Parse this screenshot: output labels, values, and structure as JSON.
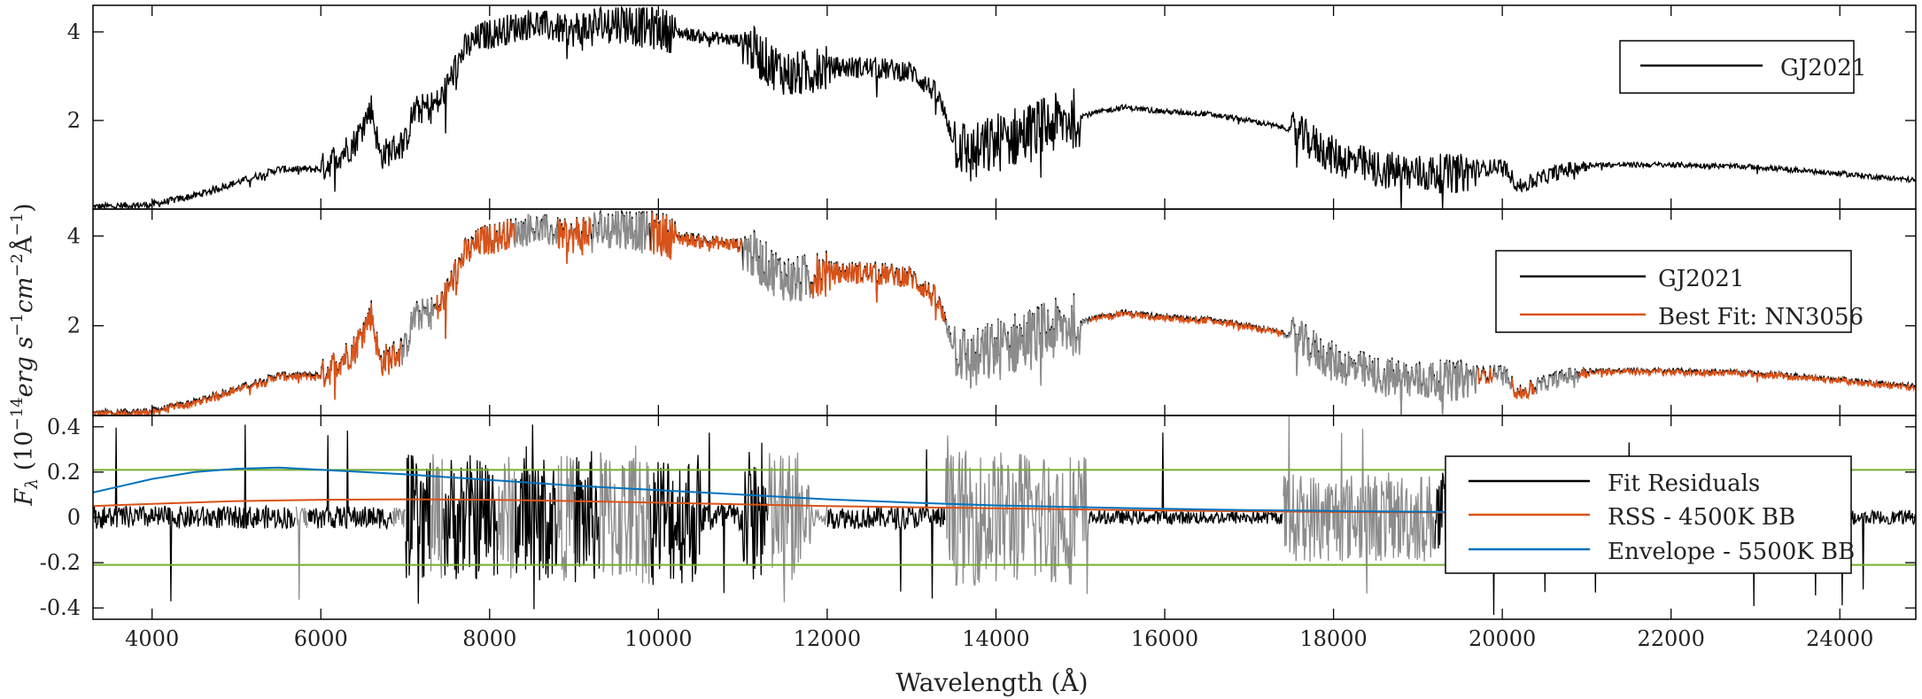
{
  "figure": {
    "xlabel": "Wavelength (Å)",
    "ylabel_main": "F",
    "ylabel_sub": "λ",
    "ylabel_rest": " (10",
    "ylabel_exp1": "−14",
    "ylabel_unit1": "erg s",
    "ylabel_exp2": "−1",
    "ylabel_unit2": "cm",
    "ylabel_exp3": "−2",
    "ylabel_unit3": "Å",
    "ylabel_exp4": "−1",
    "ylabel_close": ")"
  },
  "colors": {
    "observed": "#000000",
    "fit": "#d95319",
    "masked": "#8c8c8c",
    "rss": "#d95319",
    "envelope": "#0072bd",
    "threshold": "#77ac30"
  },
  "chart_data": [
    {
      "type": "line",
      "panel": "top",
      "xlim": [
        3300,
        24900
      ],
      "ylim": [
        0,
        4.6
      ],
      "yticks": [
        2,
        4
      ],
      "xticks": [
        4000,
        6000,
        8000,
        10000,
        12000,
        14000,
        16000,
        18000,
        20000,
        22000,
        24000
      ],
      "legend_position": "top-right",
      "series": [
        {
          "name": "GJ2021",
          "color": "#000000",
          "anchors_x": [
            3300,
            4000,
            4500,
            5000,
            5500,
            6000,
            6400,
            6600,
            6700,
            7000,
            7100,
            7400,
            7700,
            7900,
            8100,
            8500,
            9000,
            9500,
            9900,
            10500,
            11000,
            11300,
            11600,
            12000,
            12500,
            13000,
            13300,
            13500,
            13700,
            14000,
            14500,
            15000,
            15500,
            16000,
            16500,
            17000,
            17500,
            18000,
            18500,
            19000,
            19500,
            20000,
            20200,
            20600,
            21000,
            22000,
            23000,
            24000,
            24900
          ],
          "anchors_y": [
            0.05,
            0.1,
            0.3,
            0.6,
            0.9,
            0.9,
            1.5,
            2.3,
            1.2,
            1.5,
            2.2,
            2.4,
            3.6,
            3.9,
            4.0,
            4.2,
            4.0,
            4.25,
            4.1,
            3.9,
            3.8,
            3.3,
            3.0,
            3.2,
            3.2,
            3.1,
            2.6,
            1.6,
            1.2,
            1.5,
            1.8,
            2.1,
            2.3,
            2.2,
            2.15,
            2.0,
            1.8,
            1.2,
            0.9,
            0.8,
            0.8,
            1.0,
            0.5,
            0.8,
            1.0,
            1.0,
            0.95,
            0.8,
            0.65
          ],
          "noise": [
            {
              "from": 3300,
              "to": 6000,
              "amp": 0.08
            },
            {
              "from": 6000,
              "to": 8000,
              "amp": 0.35
            },
            {
              "from": 8000,
              "to": 9000,
              "amp": 0.35
            },
            {
              "from": 9000,
              "to": 10200,
              "amp": 0.5
            },
            {
              "from": 10200,
              "to": 11000,
              "amp": 0.15
            },
            {
              "from": 11000,
              "to": 12000,
              "amp": 0.55
            },
            {
              "from": 12000,
              "to": 13500,
              "amp": 0.25
            },
            {
              "from": 13500,
              "to": 15000,
              "amp": 0.7
            },
            {
              "from": 15000,
              "to": 17500,
              "amp": 0.06
            },
            {
              "from": 17500,
              "to": 19700,
              "amp": 0.45
            },
            {
              "from": 19700,
              "to": 21000,
              "amp": 0.18
            },
            {
              "from": 21000,
              "to": 24900,
              "amp": 0.06
            }
          ]
        }
      ]
    },
    {
      "type": "line",
      "panel": "middle",
      "xlim": [
        3300,
        24900
      ],
      "ylim": [
        0,
        4.6
      ],
      "yticks": [
        2,
        4
      ],
      "xticks": [
        4000,
        6000,
        8000,
        10000,
        12000,
        14000,
        16000,
        18000,
        20000,
        22000,
        24000
      ],
      "legend_position": "top-right",
      "series": [
        {
          "name": "GJ2021",
          "color": "#000000"
        },
        {
          "name": "Best Fit: NN3056",
          "color": "#d95319"
        }
      ],
      "masked_regions": [
        [
          6950,
          7350
        ],
        [
          8300,
          8800
        ],
        [
          9200,
          9900
        ],
        [
          11000,
          11800
        ],
        [
          13400,
          15100
        ],
        [
          17400,
          19700
        ],
        [
          19900,
          20100
        ],
        [
          20400,
          20900
        ]
      ]
    },
    {
      "type": "line",
      "panel": "bottom",
      "xlim": [
        3300,
        24900
      ],
      "ylim": [
        -0.45,
        0.45
      ],
      "ytick_labels": [
        "-0.4",
        "-0.2",
        "0",
        "0.2",
        "0.4"
      ],
      "yticks": [
        -0.4,
        -0.2,
        0,
        0.2,
        0.4
      ],
      "xticks": [
        4000,
        6000,
        8000,
        10000,
        12000,
        14000,
        16000,
        18000,
        20000,
        22000,
        24000
      ],
      "threshold_lines": [
        0.21,
        -0.21
      ],
      "legend_position": "right",
      "series": [
        {
          "name": "Fit Residuals",
          "color": "#000000",
          "noise": [
            {
              "from": 3300,
              "to": 7000,
              "amp": 0.05
            },
            {
              "from": 7000,
              "to": 9000,
              "amp": 0.28
            },
            {
              "from": 9000,
              "to": 10500,
              "amp": 0.3
            },
            {
              "from": 10500,
              "to": 11000,
              "amp": 0.07
            },
            {
              "from": 11000,
              "to": 11800,
              "amp": 0.3
            },
            {
              "from": 11800,
              "to": 13400,
              "amp": 0.05
            },
            {
              "from": 13400,
              "to": 15100,
              "amp": 0.3
            },
            {
              "from": 15100,
              "to": 17400,
              "amp": 0.03
            },
            {
              "from": 17400,
              "to": 19700,
              "amp": 0.2
            },
            {
              "from": 19700,
              "to": 24900,
              "amp": 0.03
            }
          ]
        },
        {
          "name": "RSS - 4500K BB",
          "color": "#d95319",
          "x": [
            3300,
            4000,
            5000,
            6000,
            7000,
            8000,
            9000,
            10000,
            12000,
            14000,
            16000,
            18000,
            20000
          ],
          "y": [
            0.05,
            0.06,
            0.072,
            0.078,
            0.08,
            0.078,
            0.072,
            0.065,
            0.05,
            0.04,
            0.03,
            0.024,
            0.02
          ]
        },
        {
          "name": "Envelope - 5500K BB",
          "color": "#0072bd",
          "x": [
            3300,
            4000,
            4500,
            5000,
            5500,
            6000,
            7000,
            8000,
            9000,
            10000,
            11000,
            12000,
            13000,
            14000,
            15000,
            16000,
            17000,
            18000,
            20000
          ],
          "y": [
            0.11,
            0.17,
            0.2,
            0.215,
            0.22,
            0.21,
            0.19,
            0.165,
            0.14,
            0.12,
            0.1,
            0.08,
            0.065,
            0.053,
            0.045,
            0.038,
            0.032,
            0.028,
            0.022
          ]
        }
      ],
      "masked_regions": [
        [
          5700,
          5850
        ],
        [
          6850,
          7000
        ],
        [
          7300,
          7450
        ],
        [
          8100,
          8300
        ],
        [
          8800,
          9000
        ],
        [
          9300,
          9900
        ],
        [
          11300,
          12000
        ],
        [
          13400,
          15100
        ],
        [
          17400,
          19200
        ]
      ]
    }
  ]
}
